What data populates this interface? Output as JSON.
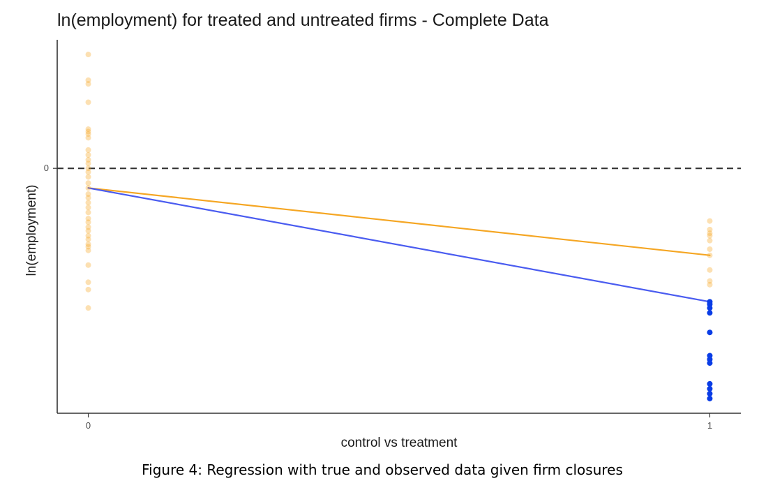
{
  "colors": {
    "background": "#ffffff",
    "axis": "#333333",
    "reference_line": "#333333",
    "orange": "#f5a623",
    "blue": "#0a3de6",
    "blue_line": "#4a5cf0"
  },
  "caption": "Figure 4: Regression with true and observed data given firm closures",
  "chart_data": {
    "type": "scatter",
    "title": "ln(employment) for treated and untreated firms - Complete Data",
    "xlabel": "control vs treatment",
    "ylabel": "ln(employment)",
    "x_ticks": [
      "0",
      "1"
    ],
    "y_ticks": [
      "0"
    ],
    "xlim": [
      -0.05,
      1.05
    ],
    "ylim": [
      -2.0,
      1.05
    ],
    "grid": false,
    "legend": "none",
    "reference_line": {
      "y": 0,
      "style": "dashed"
    },
    "series": [
      {
        "color": "orange",
        "opacity": 0.35,
        "points": [
          {
            "x": 0,
            "y": 0.93
          },
          {
            "x": 0,
            "y": 0.72
          },
          {
            "x": 0,
            "y": 0.69
          },
          {
            "x": 0,
            "y": 0.54
          },
          {
            "x": 0,
            "y": 0.32
          },
          {
            "x": 0,
            "y": 0.3
          },
          {
            "x": 0,
            "y": 0.28
          },
          {
            "x": 0,
            "y": 0.25
          },
          {
            "x": 0,
            "y": 0.15
          },
          {
            "x": 0,
            "y": 0.11
          },
          {
            "x": 0,
            "y": 0.07
          },
          {
            "x": 0,
            "y": 0.04
          },
          {
            "x": 0,
            "y": 0.0
          },
          {
            "x": 0,
            "y": -0.03
          },
          {
            "x": 0,
            "y": -0.07
          },
          {
            "x": 0,
            "y": -0.12
          },
          {
            "x": 0,
            "y": -0.16
          },
          {
            "x": 0,
            "y": -0.21
          },
          {
            "x": 0,
            "y": -0.24
          },
          {
            "x": 0,
            "y": -0.28
          },
          {
            "x": 0,
            "y": -0.32
          },
          {
            "x": 0,
            "y": -0.36
          },
          {
            "x": 0,
            "y": -0.41
          },
          {
            "x": 0,
            "y": -0.44
          },
          {
            "x": 0,
            "y": -0.48
          },
          {
            "x": 0,
            "y": -0.51
          },
          {
            "x": 0,
            "y": -0.55
          },
          {
            "x": 0,
            "y": -0.58
          },
          {
            "x": 0,
            "y": -0.62
          },
          {
            "x": 0,
            "y": -0.64
          },
          {
            "x": 0,
            "y": -0.67
          },
          {
            "x": 0,
            "y": -0.79
          },
          {
            "x": 0,
            "y": -0.93
          },
          {
            "x": 0,
            "y": -0.99
          },
          {
            "x": 0,
            "y": -1.14
          },
          {
            "x": 1,
            "y": -0.43
          },
          {
            "x": 1,
            "y": -0.5
          },
          {
            "x": 1,
            "y": -0.53
          },
          {
            "x": 1,
            "y": -0.55
          },
          {
            "x": 1,
            "y": -0.59
          },
          {
            "x": 1,
            "y": -0.66
          },
          {
            "x": 1,
            "y": -0.71
          },
          {
            "x": 1,
            "y": -0.83
          },
          {
            "x": 1,
            "y": -0.92
          },
          {
            "x": 1,
            "y": -0.95
          }
        ],
        "fit": {
          "x": [
            0,
            1
          ],
          "y": [
            -0.16,
            -0.71
          ]
        }
      },
      {
        "color": "blue",
        "opacity": 1,
        "points": [
          {
            "x": 1,
            "y": -1.09
          },
          {
            "x": 1,
            "y": -1.11
          },
          {
            "x": 1,
            "y": -1.14
          },
          {
            "x": 1,
            "y": -1.18
          },
          {
            "x": 1,
            "y": -1.34
          },
          {
            "x": 1,
            "y": -1.53
          },
          {
            "x": 1,
            "y": -1.56
          },
          {
            "x": 1,
            "y": -1.59
          },
          {
            "x": 1,
            "y": -1.76
          },
          {
            "x": 1,
            "y": -1.8
          },
          {
            "x": 1,
            "y": -1.84
          },
          {
            "x": 1,
            "y": -1.88
          }
        ],
        "fit": {
          "x": [
            0,
            1
          ],
          "y": [
            -0.16,
            -1.09
          ]
        }
      }
    ]
  }
}
